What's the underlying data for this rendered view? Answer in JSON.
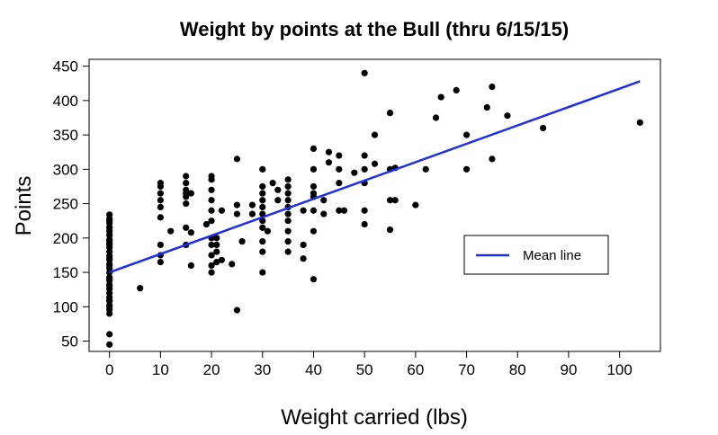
{
  "chart_data": {
    "type": "scatter",
    "title": "Weight by points at the Bull (thru 6/15/15)",
    "xlabel": "Weight carried (lbs)",
    "ylabel": "Points",
    "xlim": [
      -4,
      108
    ],
    "ylim": [
      35,
      460
    ],
    "xticks": [
      0,
      10,
      20,
      30,
      40,
      50,
      60,
      70,
      80,
      90,
      100
    ],
    "yticks": [
      50,
      100,
      150,
      200,
      250,
      300,
      350,
      400,
      450
    ],
    "grid": false,
    "legend": {
      "position": "right",
      "entries": [
        {
          "label": "Mean line",
          "color": "#1f2ee6"
        }
      ]
    },
    "mean_line": {
      "name": "Mean line",
      "color": "#1f2ee6",
      "x": [
        0,
        104
      ],
      "y": [
        150,
        428
      ]
    },
    "points": {
      "x": [
        0,
        0,
        0,
        0,
        0,
        0,
        0,
        0,
        0,
        0,
        0,
        0,
        0,
        0,
        0,
        0,
        0,
        0,
        0,
        0,
        0,
        0,
        0,
        0,
        0,
        0,
        0,
        0,
        0,
        0,
        0,
        0,
        0,
        0,
        0,
        0,
        0,
        0,
        0,
        6,
        10,
        10,
        10,
        10,
        10,
        10,
        10,
        10,
        10,
        12,
        15,
        15,
        15,
        15,
        15,
        15,
        15,
        15,
        16,
        16,
        16,
        19,
        20,
        20,
        20,
        20,
        20,
        20,
        20,
        20,
        20,
        20,
        20,
        21,
        21,
        21,
        21,
        22,
        22,
        24,
        25,
        25,
        25,
        25,
        26,
        28,
        28,
        30,
        30,
        30,
        30,
        30,
        30,
        30,
        30,
        30,
        30,
        30,
        31,
        32,
        33,
        33,
        35,
        35,
        35,
        35,
        35,
        35,
        35,
        35,
        35,
        35,
        38,
        38,
        38,
        40,
        40,
        40,
        40,
        40,
        40,
        40,
        40,
        42,
        42,
        43,
        43,
        45,
        45,
        45,
        45,
        46,
        48,
        50,
        50,
        50,
        50,
        50,
        50,
        52,
        52,
        55,
        55,
        55,
        55,
        56,
        56,
        60,
        62,
        64,
        65,
        68,
        70,
        70,
        74,
        75,
        75,
        78,
        85,
        104
      ],
      "y": [
        45,
        60,
        90,
        96,
        102,
        108,
        114,
        120,
        126,
        132,
        138,
        143,
        150,
        156,
        162,
        168,
        174,
        180,
        186,
        192,
        198,
        204,
        210,
        216,
        222,
        228,
        234,
        100,
        110,
        130,
        140,
        170,
        195,
        205,
        215,
        225,
        170,
        160,
        190,
        127,
        165,
        175,
        190,
        230,
        245,
        255,
        265,
        275,
        280,
        210,
        190,
        215,
        250,
        260,
        265,
        270,
        280,
        290,
        265,
        208,
        160,
        220,
        150,
        160,
        175,
        190,
        200,
        225,
        240,
        255,
        270,
        285,
        290,
        165,
        180,
        190,
        200,
        168,
        240,
        162,
        95,
        235,
        248,
        315,
        195,
        235,
        248,
        150,
        180,
        195,
        215,
        225,
        235,
        245,
        255,
        265,
        275,
        300,
        210,
        280,
        255,
        270,
        180,
        195,
        210,
        225,
        235,
        245,
        255,
        265,
        275,
        285,
        170,
        190,
        240,
        140,
        210,
        240,
        260,
        265,
        275,
        300,
        330,
        235,
        255,
        310,
        325,
        240,
        280,
        300,
        320,
        240,
        295,
        220,
        240,
        280,
        300,
        320,
        440,
        308,
        350,
        212,
        255,
        300,
        382,
        255,
        302,
        248,
        300,
        375,
        405,
        415,
        300,
        350,
        390,
        315,
        420,
        378,
        360,
        368
      ]
    }
  }
}
